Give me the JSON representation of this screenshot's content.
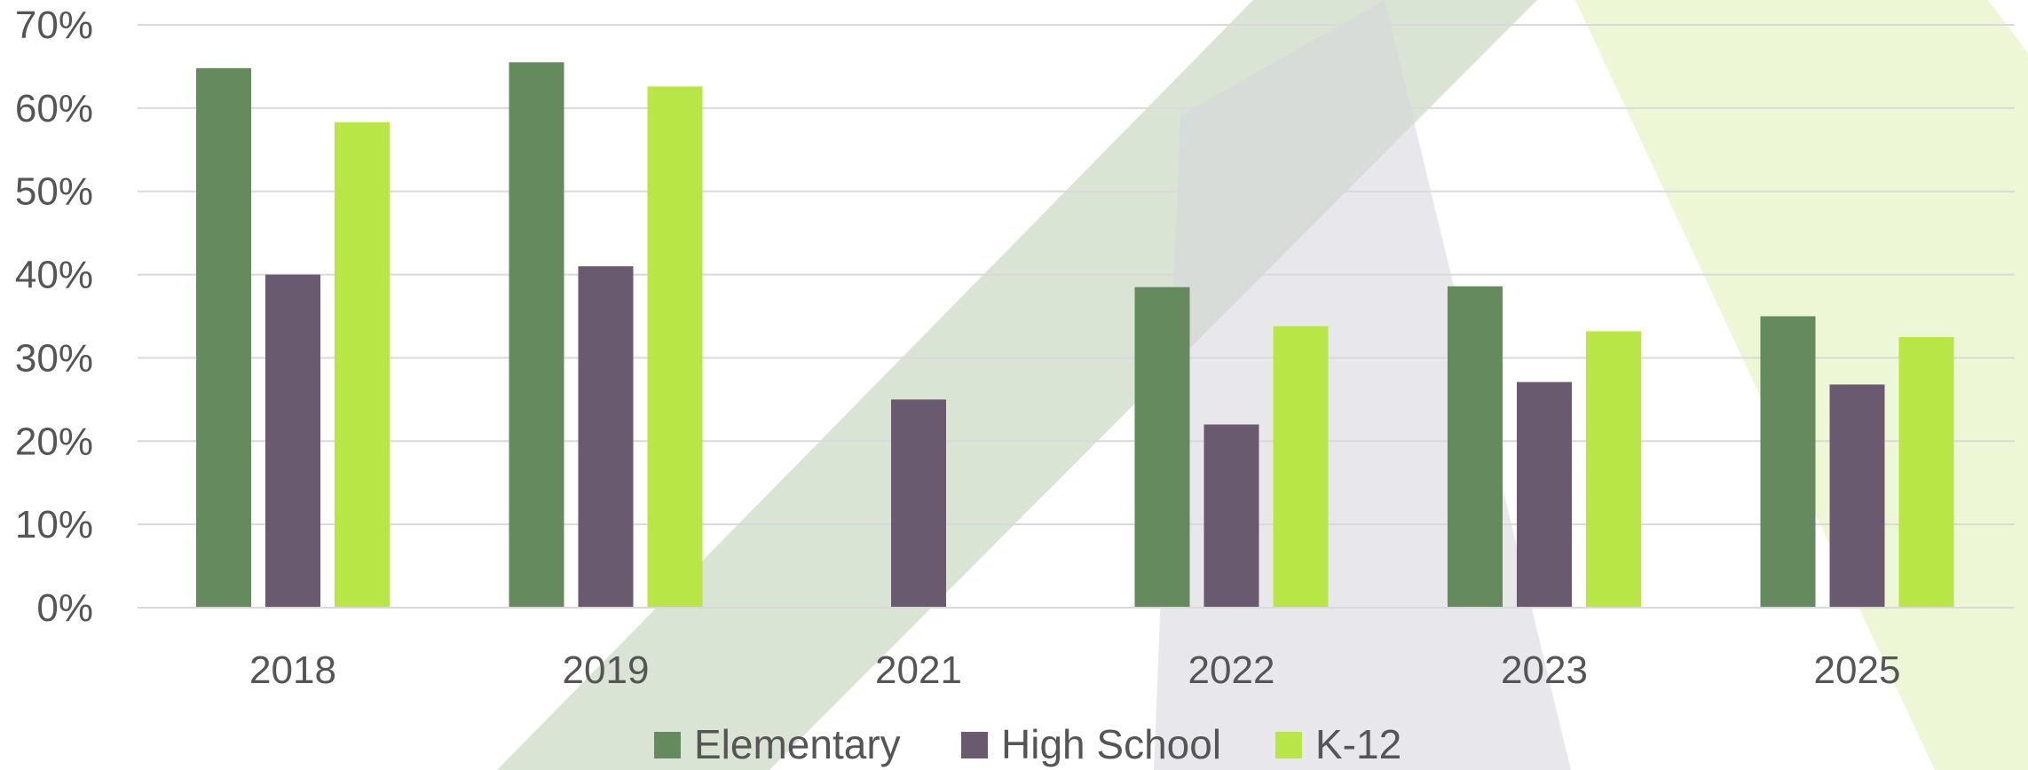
{
  "chart_data": {
    "type": "bar",
    "categories": [
      "2018",
      "2019",
      "2021",
      "2022",
      "2023",
      "2025"
    ],
    "series": [
      {
        "name": "Elementary",
        "color": "#648a5e",
        "values": [
          64.8,
          65.5,
          null,
          38.5,
          38.6,
          35.0
        ]
      },
      {
        "name": "High School",
        "color": "#6a5a70",
        "values": [
          40.0,
          41.0,
          25.0,
          22.0,
          27.1,
          26.8
        ]
      },
      {
        "name": "K-12",
        "color": "#b8e646",
        "values": [
          58.3,
          62.6,
          null,
          33.8,
          33.2,
          32.5
        ]
      }
    ],
    "y_ticks": [
      "0%",
      "10%",
      "20%",
      "30%",
      "40%",
      "50%",
      "60%",
      "70%"
    ],
    "ylim": [
      0,
      70
    ],
    "grid": true,
    "legend_position": "bottom",
    "title": "",
    "xlabel": "",
    "ylabel": ""
  },
  "background": {
    "stripe_color_green": "#c9d8c2",
    "stripe_color_gray": "#cfcfd6",
    "stripe_color_lime": "#e7f4c8"
  }
}
